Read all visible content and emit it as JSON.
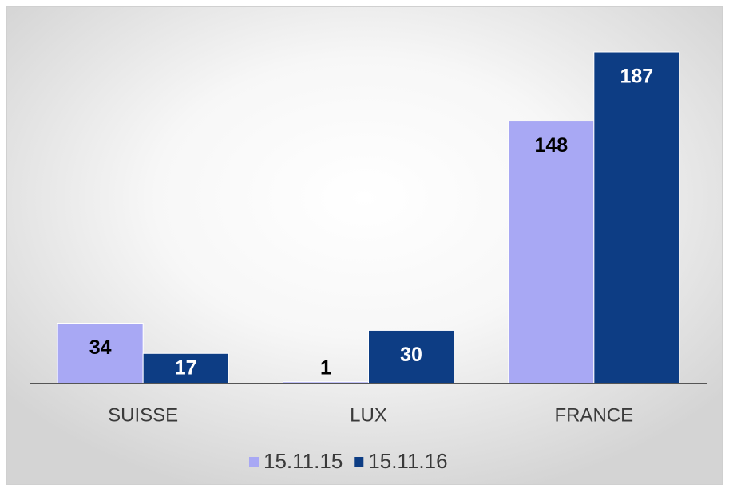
{
  "chart_data": {
    "type": "bar",
    "categories": [
      "SUISSE",
      "LUX",
      "FRANCE"
    ],
    "series": [
      {
        "name": "15.11.15",
        "color": "#a8a8f4",
        "label_color": "#000000",
        "values": [
          34,
          1,
          148
        ]
      },
      {
        "name": "15.11.16",
        "color": "#0d3d84",
        "label_color": "#ffffff",
        "values": [
          17,
          30,
          187
        ]
      }
    ],
    "legend": "bottom",
    "grid": false
  }
}
